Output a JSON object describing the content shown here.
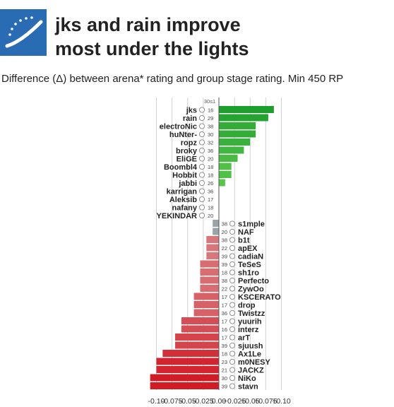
{
  "header": {
    "title_line1": "jks and rain improve",
    "title_line2": "most under the lights",
    "subtitle": "Difference (Δ) between arena* rating and group stage rating. Min 450 RP"
  },
  "logo": {
    "icon": "hltv-logo-icon",
    "color": "#2a6cb4"
  },
  "colors": {
    "positive_dark": "#1e9e2d",
    "positive_light": "#5fca4f",
    "neutral": "#9aa3a8",
    "negative_light": "#d98b8e",
    "negative_dark": "#d11b25"
  },
  "chart_data": {
    "type": "bar",
    "orientation": "horizontal",
    "column_header": "30s1",
    "xlim": [
      -0.112,
      0.1
    ],
    "xticks": [
      -0.1,
      -0.075,
      -0.05,
      -0.025,
      0.0,
      0.025,
      0.05,
      0.075,
      0.1
    ],
    "xtick_labels": [
      "-0.10",
      "-0.075",
      "-0.05",
      "-0.025",
      "0.00",
      "+0.025",
      "+0.05",
      "+0.075",
      "+0.10"
    ],
    "grid": "vertical",
    "players": [
      {
        "name": "jks",
        "team_icon": "complexity-icon",
        "count": "16",
        "value": 0.088
      },
      {
        "name": "rain",
        "team_icon": "faze-icon",
        "count": "29",
        "value": 0.079
      },
      {
        "name": "electroNic",
        "team_icon": "navi-icon",
        "count": "38",
        "value": 0.059
      },
      {
        "name": "huNter-",
        "team_icon": "g2-icon",
        "count": "30",
        "value": 0.059
      },
      {
        "name": "ropz",
        "team_icon": "faze-icon",
        "count": "32",
        "value": 0.05
      },
      {
        "name": "broky",
        "team_icon": "faze-icon",
        "count": "36",
        "value": 0.04
      },
      {
        "name": "EliGE",
        "team_icon": "liquid-icon",
        "count": "20",
        "value": 0.03
      },
      {
        "name": "Boombl4",
        "team_icon": "navi-icon",
        "count": "18",
        "value": 0.02
      },
      {
        "name": "Hobbit",
        "team_icon": "cloud9-icon",
        "count": "18",
        "value": 0.02
      },
      {
        "name": "jabbi",
        "team_icon": "heroic-icon",
        "count": "26",
        "value": 0.01
      },
      {
        "name": "karrigan",
        "team_icon": "faze-icon",
        "count": "36",
        "value": 0.0
      },
      {
        "name": "Aleksib",
        "team_icon": "ence-icon",
        "count": "17",
        "value": 0.0
      },
      {
        "name": "nafany",
        "team_icon": "cloud9-icon",
        "count": "18",
        "value": 0.0
      },
      {
        "name": "YEKINDAR",
        "team_icon": "liquid-icon",
        "count": "20",
        "value": 0.0
      },
      {
        "name": "s1mple",
        "team_icon": "navi-icon",
        "count": "38",
        "value": -0.01
      },
      {
        "name": "NAF",
        "team_icon": "liquid-icon",
        "count": "20",
        "value": -0.01
      },
      {
        "name": "b1t",
        "team_icon": "navi-icon",
        "count": "38",
        "value": -0.02
      },
      {
        "name": "apEX",
        "team_icon": "vitality-icon",
        "count": "22",
        "value": -0.02
      },
      {
        "name": "cadiaN",
        "team_icon": "heroic-icon",
        "count": "39",
        "value": -0.02
      },
      {
        "name": "TeSeS",
        "team_icon": "heroic-icon",
        "count": "39",
        "value": -0.03
      },
      {
        "name": "sh1ro",
        "team_icon": "cloud9-icon",
        "count": "18",
        "value": -0.03
      },
      {
        "name": "Perfecto",
        "team_icon": "navi-icon",
        "count": "38",
        "value": -0.03
      },
      {
        "name": "ZywOo",
        "team_icon": "vitality-icon",
        "count": "22",
        "value": -0.03
      },
      {
        "name": "KSCERATO",
        "team_icon": "furia-icon",
        "count": "17",
        "value": -0.04
      },
      {
        "name": "drop",
        "team_icon": "furia-icon",
        "count": "17",
        "value": -0.04
      },
      {
        "name": "Twistzz",
        "team_icon": "faze-icon",
        "count": "36",
        "value": -0.04
      },
      {
        "name": "yuurih",
        "team_icon": "furia-icon",
        "count": "17",
        "value": -0.06
      },
      {
        "name": "interz",
        "team_icon": "cloud9-icon",
        "count": "16",
        "value": -0.06
      },
      {
        "name": "arT",
        "team_icon": "furia-icon",
        "count": "17",
        "value": -0.07
      },
      {
        "name": "sjuush",
        "team_icon": "heroic-icon",
        "count": "39",
        "value": -0.07
      },
      {
        "name": "Ax1Le",
        "team_icon": "cloud9-icon",
        "count": "18",
        "value": -0.09
      },
      {
        "name": "m0NESY",
        "team_icon": "g2-icon",
        "count": "23",
        "value": -0.1
      },
      {
        "name": "JACKZ",
        "team_icon": "g2-icon",
        "count": "21",
        "value": -0.1
      },
      {
        "name": "NiKo",
        "team_icon": "g2-icon",
        "count": "30",
        "value": -0.11
      },
      {
        "name": "stavn",
        "team_icon": "heroic-icon",
        "count": "39",
        "value": -0.11
      }
    ]
  }
}
